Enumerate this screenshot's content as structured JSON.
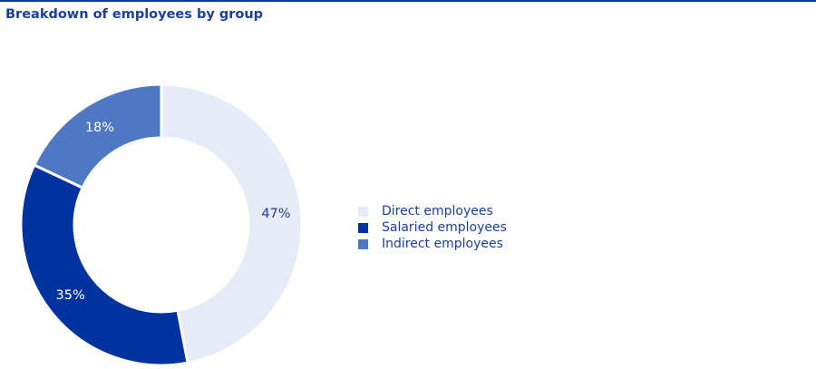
{
  "chart_data": {
    "type": "pie",
    "title": "Breakdown of employees by group",
    "categories": [
      "Direct employees",
      "Salaried employees",
      "Indirect employees"
    ],
    "values": [
      47,
      35,
      18
    ],
    "value_labels": [
      "47%",
      "35%",
      "18%"
    ],
    "colors": [
      "#e6ebf7",
      "#0033a0",
      "#4f78c4"
    ],
    "label_colors": [
      "#1a3f9c",
      "#ffffff",
      "#ffffff"
    ],
    "legend": "right",
    "donut": true
  }
}
